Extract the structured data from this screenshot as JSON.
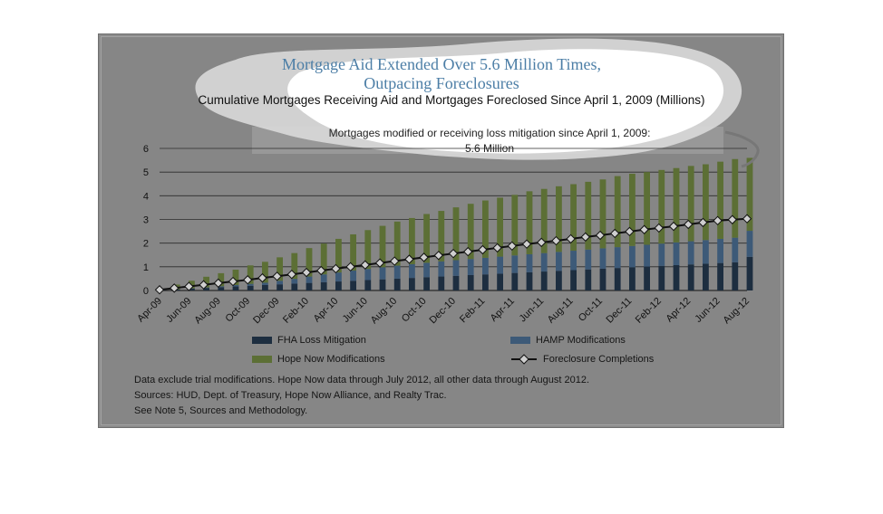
{
  "chart_data": {
    "type": "bar",
    "stacked": true,
    "title_line1": "Mortgage Aid Extended Over 5.6 Million Times,",
    "title_line2": "Outpacing Foreclosures",
    "subtitle": "Cumulative Mortgages Receiving Aid and Mortgages Foreclosed Since April 1, 2009 (Millions)",
    "annotation_line1": "Mortgages modified or receiving loss mitigation since April 1, 2009:",
    "annotation_line2": "5.6 Million",
    "ylim": [
      0,
      6
    ],
    "yticks": [
      0,
      1,
      2,
      3,
      4,
      5,
      6
    ],
    "grid": true,
    "legend_position": "bottom",
    "categories": [
      "Apr-09",
      "May-09",
      "Jun-09",
      "Jul-09",
      "Aug-09",
      "Sep-09",
      "Oct-09",
      "Nov-09",
      "Dec-09",
      "Jan-10",
      "Feb-10",
      "Mar-10",
      "Apr-10",
      "May-10",
      "Jun-10",
      "Jul-10",
      "Aug-10",
      "Sep-10",
      "Oct-10",
      "Nov-10",
      "Dec-10",
      "Jan-11",
      "Feb-11",
      "Mar-11",
      "Apr-11",
      "May-11",
      "Jun-11",
      "Jul-11",
      "Aug-11",
      "Sep-11",
      "Oct-11",
      "Nov-11",
      "Dec-11",
      "Jan-12",
      "Feb-12",
      "Mar-12",
      "Apr-12",
      "May-12",
      "Jun-12",
      "Jul-12",
      "Aug-12"
    ],
    "tick_labels": [
      "Apr-09",
      "Jun-09",
      "Aug-09",
      "Oct-09",
      "Dec-09",
      "Feb-10",
      "Apr-10",
      "Jun-10",
      "Aug-10",
      "Oct-10",
      "Dec-10",
      "Feb-11",
      "Apr-11",
      "Jun-11",
      "Aug-11",
      "Oct-11",
      "Dec-11",
      "Feb-12",
      "Apr-12",
      "Jun-12",
      "Aug-12"
    ],
    "series": [
      {
        "name": "FHA Loss Mitigation",
        "color": "#1d2e40",
        "values": [
          0.02,
          0.05,
          0.08,
          0.11,
          0.14,
          0.17,
          0.2,
          0.23,
          0.26,
          0.29,
          0.32,
          0.35,
          0.38,
          0.41,
          0.44,
          0.47,
          0.5,
          0.53,
          0.56,
          0.59,
          0.62,
          0.65,
          0.68,
          0.71,
          0.74,
          0.77,
          0.8,
          0.83,
          0.86,
          0.89,
          0.92,
          0.95,
          0.98,
          1.01,
          1.04,
          1.07,
          1.1,
          1.13,
          1.16,
          1.19,
          1.42
        ]
      },
      {
        "name": "HAMP Modifications",
        "color": "#3d5a78",
        "values": [
          0.0,
          0.0,
          0.01,
          0.02,
          0.04,
          0.06,
          0.08,
          0.1,
          0.15,
          0.2,
          0.27,
          0.33,
          0.38,
          0.43,
          0.47,
          0.51,
          0.55,
          0.58,
          0.61,
          0.64,
          0.66,
          0.68,
          0.7,
          0.72,
          0.74,
          0.76,
          0.78,
          0.8,
          0.82,
          0.84,
          0.86,
          0.88,
          0.9,
          0.92,
          0.94,
          0.96,
          0.98,
          1.0,
          1.02,
          1.04,
          1.1
        ]
      },
      {
        "name": "Hope Now Modifications",
        "color": "#5c6f35",
        "values": [
          0.02,
          0.2,
          0.32,
          0.45,
          0.55,
          0.65,
          0.78,
          0.88,
          0.99,
          1.09,
          1.2,
          1.3,
          1.42,
          1.53,
          1.64,
          1.75,
          1.86,
          1.95,
          2.06,
          2.13,
          2.23,
          2.33,
          2.42,
          2.49,
          2.56,
          2.66,
          2.71,
          2.77,
          2.81,
          2.86,
          2.91,
          3.0,
          3.05,
          3.07,
          3.11,
          3.14,
          3.18,
          3.2,
          3.26,
          3.32,
          3.08
        ]
      },
      {
        "name": "Foreclosure Completions",
        "type": "line",
        "color": "#111111",
        "marker_fill": "#cfcfcf",
        "values": [
          0.03,
          0.1,
          0.17,
          0.24,
          0.31,
          0.38,
          0.45,
          0.53,
          0.6,
          0.68,
          0.76,
          0.84,
          0.92,
          1.0,
          1.08,
          1.16,
          1.24,
          1.32,
          1.4,
          1.48,
          1.56,
          1.64,
          1.72,
          1.8,
          1.88,
          1.96,
          2.03,
          2.1,
          2.18,
          2.26,
          2.33,
          2.41,
          2.49,
          2.57,
          2.64,
          2.71,
          2.79,
          2.87,
          2.95,
          2.99,
          3.03
        ]
      }
    ]
  },
  "notes": {
    "line1": "Data exclude trial modifications. Hope Now data through July 2012, all other data through August 2012.",
    "line2": "Sources:  HUD, Dept. of Treasury, Hope Now Alliance, and Realty Trac.",
    "line3": "See Note 5, Sources and Methodology."
  }
}
